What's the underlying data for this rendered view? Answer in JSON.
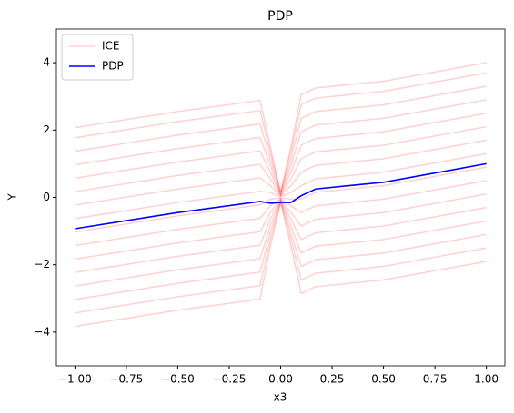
{
  "chart_data": {
    "type": "line",
    "title": "PDP",
    "xlabel": "x3",
    "ylabel": "Y",
    "x": [
      -1,
      -0.5,
      -0.1,
      -0.05,
      0,
      0.05,
      0.1,
      0.17,
      0.5,
      1
    ],
    "series": [
      {
        "name": "ICE",
        "color": "#ff0000",
        "lines": [
          [
            -3.83,
            -3.35,
            -3.02,
            -1.45,
            -0.15,
            -1.45,
            -2.85,
            -2.65,
            -2.45,
            -1.9
          ],
          [
            -3.43,
            -2.95,
            -2.62,
            -1.25,
            -0.13,
            -1.25,
            -2.45,
            -2.25,
            -2.05,
            -1.5
          ],
          [
            -3.03,
            -2.55,
            -2.22,
            -1.05,
            -0.11,
            -1.05,
            -2.05,
            -1.85,
            -1.65,
            -1.1
          ],
          [
            -2.63,
            -2.15,
            -1.82,
            -0.85,
            -0.09,
            -0.85,
            -1.65,
            -1.45,
            -1.25,
            -0.7
          ],
          [
            -2.23,
            -1.75,
            -1.42,
            -0.65,
            -0.07,
            -0.65,
            -1.25,
            -1.05,
            -0.85,
            -0.3
          ],
          [
            -1.83,
            -1.35,
            -1.02,
            -0.45,
            -0.05,
            -0.45,
            -0.85,
            -0.65,
            -0.45,
            0.1
          ],
          [
            -1.43,
            -0.95,
            -0.62,
            -0.25,
            -0.03,
            -0.25,
            -0.45,
            -0.25,
            -0.05,
            0.5
          ],
          [
            -1.03,
            -0.55,
            -0.22,
            -0.05,
            -0.01,
            -0.05,
            -0.05,
            0.15,
            0.35,
            0.9
          ],
          [
            -0.63,
            -0.15,
            0.18,
            0.15,
            0.02,
            0.15,
            0.35,
            0.55,
            0.75,
            1.3
          ],
          [
            -0.23,
            0.25,
            0.58,
            0.35,
            0.04,
            0.35,
            0.75,
            0.95,
            1.15,
            1.7
          ],
          [
            0.17,
            0.65,
            0.98,
            0.55,
            0.06,
            0.55,
            1.15,
            1.35,
            1.55,
            2.1
          ],
          [
            0.57,
            1.05,
            1.38,
            0.75,
            0.08,
            0.75,
            1.55,
            1.75,
            1.95,
            2.5
          ],
          [
            0.97,
            1.45,
            1.78,
            0.95,
            0.1,
            0.95,
            1.95,
            2.15,
            2.35,
            2.9
          ],
          [
            1.37,
            1.85,
            2.18,
            1.15,
            0.12,
            1.15,
            2.35,
            2.55,
            2.75,
            3.3
          ],
          [
            1.77,
            2.25,
            2.58,
            1.35,
            0.14,
            1.35,
            2.75,
            2.95,
            3.15,
            3.7
          ],
          [
            2.07,
            2.55,
            2.88,
            1.5,
            0.15,
            1.5,
            3.05,
            3.25,
            3.45,
            4.0
          ]
        ]
      },
      {
        "name": "PDP",
        "color": "#0000ff",
        "values": [
          -0.93,
          -0.45,
          -0.12,
          -0.17,
          -0.15,
          -0.15,
          0.05,
          0.25,
          0.45,
          1.0
        ]
      }
    ],
    "xlim": [
      -1.09,
      1.09
    ],
    "xticks": [
      {
        "value": -1,
        "label": "−1.00"
      },
      {
        "value": -0.75,
        "label": "−0.75"
      },
      {
        "value": -0.5,
        "label": "−0.50"
      },
      {
        "value": -0.25,
        "label": "−0.25"
      },
      {
        "value": 0,
        "label": "0.00"
      },
      {
        "value": 0.25,
        "label": "0.25"
      },
      {
        "value": 0.5,
        "label": "0.50"
      },
      {
        "value": 0.75,
        "label": "0.75"
      },
      {
        "value": 1,
        "label": "1.00"
      }
    ],
    "ylim": [
      -5,
      5
    ],
    "yticks": [
      {
        "value": -4,
        "label": "−4"
      },
      {
        "value": -2,
        "label": "−2"
      },
      0,
      2,
      4
    ],
    "legend": "upper left",
    "grid": false
  }
}
